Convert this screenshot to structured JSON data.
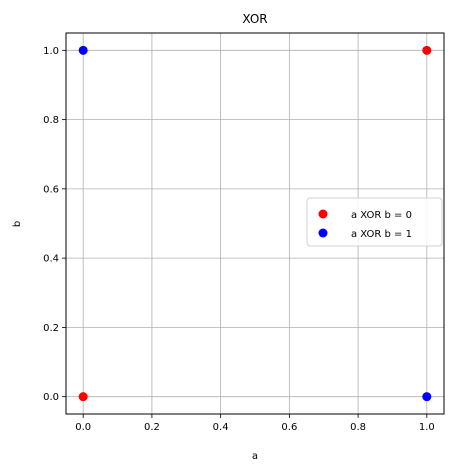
{
  "chart_data": {
    "type": "scatter",
    "title": "XOR",
    "xlabel": "a",
    "ylabel": "b",
    "xlim": [
      -0.05,
      1.05
    ],
    "ylim": [
      -0.05,
      1.05
    ],
    "xticks": [
      "0.0",
      "0.2",
      "0.4",
      "0.6",
      "0.8",
      "1.0"
    ],
    "yticks": [
      "0.0",
      "0.2",
      "0.4",
      "0.6",
      "0.8",
      "1.0"
    ],
    "grid": true,
    "legend_position": "center-right",
    "series": [
      {
        "name": "a XOR b = 0",
        "color": "#ff0000",
        "points": [
          {
            "x": 0,
            "y": 0
          },
          {
            "x": 1,
            "y": 1
          }
        ]
      },
      {
        "name": "a XOR b = 1",
        "color": "#0000ff",
        "points": [
          {
            "x": 0,
            "y": 1
          },
          {
            "x": 1,
            "y": 0
          }
        ]
      }
    ]
  }
}
